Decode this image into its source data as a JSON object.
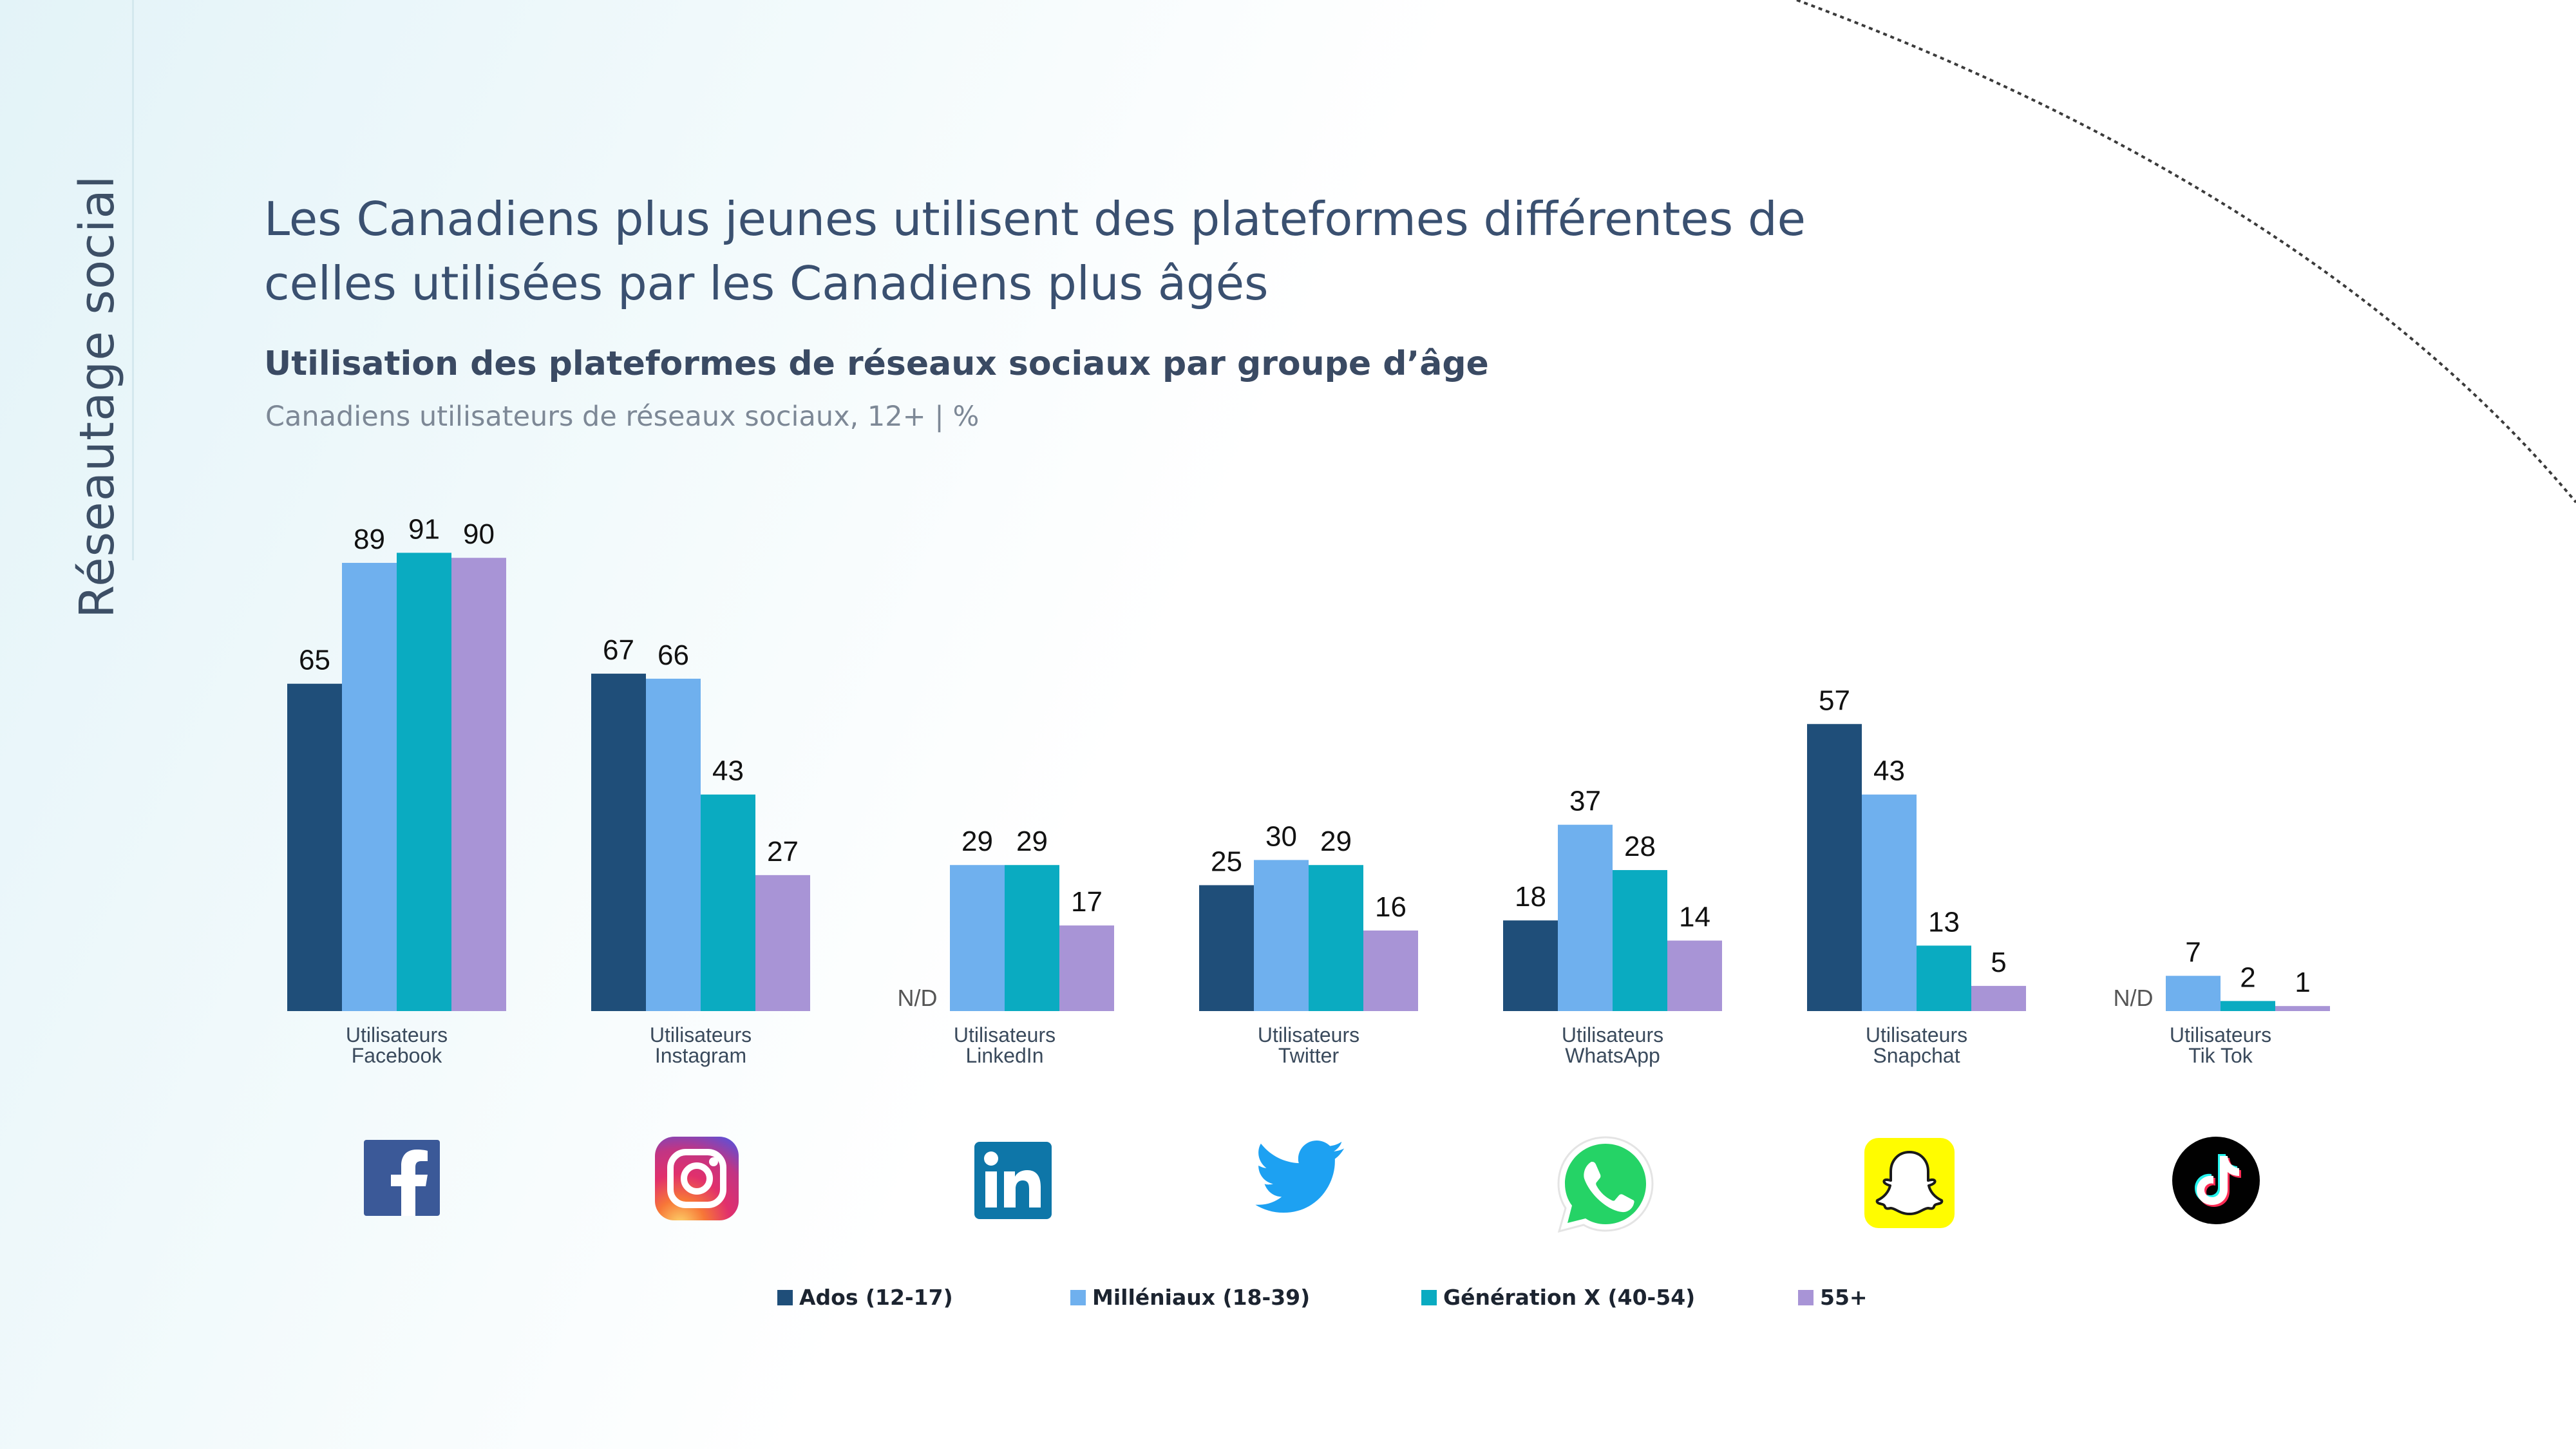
{
  "sidebar": {
    "label": "Réseautage social"
  },
  "header": {
    "title": "Les Canadiens plus jeunes utilisent des plateformes différentes de celles utilisées par les Canadiens plus âgés",
    "subtitle": "Utilisation des plateformes de réseaux sociaux par groupe d’âge",
    "note": "Canadiens utilisateurs de réseaux sociaux, 12+ | %"
  },
  "colors": {
    "ados": "#1f4e79",
    "milleniaux": "#6fb0ee",
    "genx": "#0aabc1",
    "senior": "#a894d6"
  },
  "platform_icons": [
    "facebook-icon",
    "instagram-icon",
    "linkedin-icon",
    "twitter-icon",
    "whatsapp-icon",
    "snapchat-icon",
    "tiktok-icon"
  ],
  "chart_data": {
    "type": "bar",
    "title": "Utilisation des plateformes de réseaux sociaux par groupe d’âge",
    "ylabel": "",
    "xlabel": "",
    "categories": [
      [
        "Utilisateurs",
        "Facebook"
      ],
      [
        "Utilisateurs",
        "Instagram"
      ],
      [
        "Utilisateurs",
        "LinkedIn"
      ],
      [
        "Utilisateurs",
        "Twitter"
      ],
      [
        "Utilisateurs",
        "WhatsApp"
      ],
      [
        "Utilisateurs",
        "Snapchat"
      ],
      [
        "Utilisateurs",
        "Tik Tok"
      ]
    ],
    "series": [
      {
        "name": "Ados (12-17)",
        "color": "#1f4e79",
        "values": [
          65,
          67,
          null,
          25,
          18,
          57,
          null
        ]
      },
      {
        "name": "Milléniaux (18-39)",
        "color": "#6fb0ee",
        "values": [
          89,
          66,
          29,
          30,
          37,
          43,
          7
        ]
      },
      {
        "name": "Génération X (40-54)",
        "color": "#0aabc1",
        "values": [
          91,
          43,
          29,
          29,
          28,
          13,
          2
        ]
      },
      {
        "name": "55+",
        "color": "#a894d6",
        "values": [
          90,
          27,
          17,
          16,
          14,
          5,
          1
        ]
      }
    ],
    "missing_label": "N/D",
    "ylim": [
      0,
      100
    ],
    "grid": false,
    "legend_position": "bottom"
  }
}
